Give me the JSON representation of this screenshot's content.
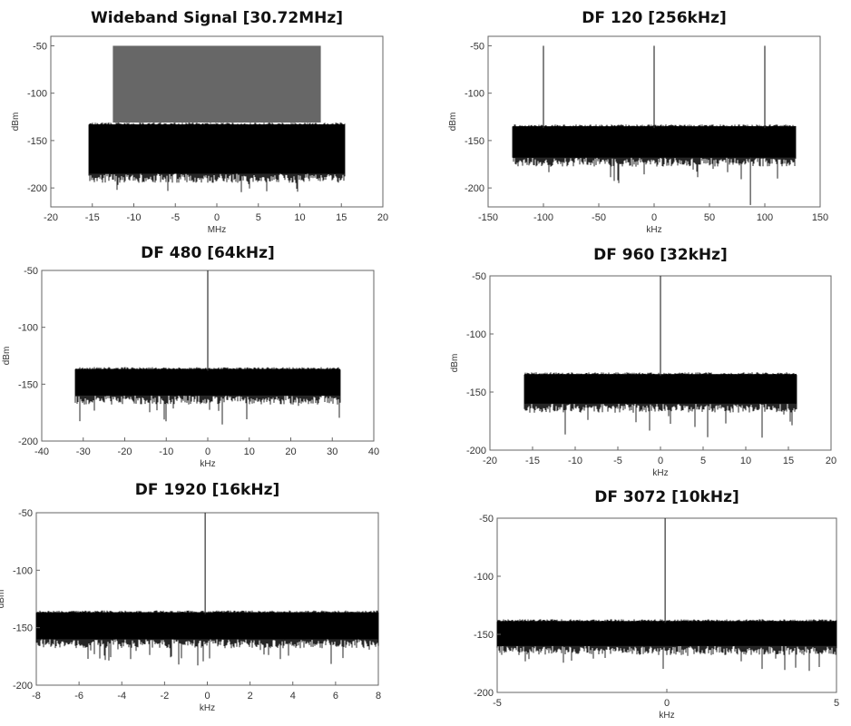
{
  "chart_data": [
    {
      "type": "line",
      "title": "Wideband Signal [30.72MHz]",
      "xlabel": "MHz",
      "ylabel": "dBm",
      "xlim": [
        -20,
        20
      ],
      "ylim": [
        -220,
        -40
      ],
      "xticks": [
        -20,
        -15,
        -10,
        -5,
        0,
        5,
        10,
        15,
        20
      ],
      "yticks": [
        -50,
        -100,
        -150,
        -200
      ],
      "noise_floor": {
        "x_range": [
          -15.36,
          15.36
        ],
        "top": -131,
        "bottom": -185,
        "deep_min": -210
      },
      "tone_band": {
        "x_range": [
          -12.5,
          12.5
        ],
        "peak": -50
      },
      "tones": [],
      "color": "#000000"
    },
    {
      "type": "line",
      "title": "DF 120 [256kHz]",
      "xlabel": "kHz",
      "ylabel": "dBm",
      "xlim": [
        -150,
        150
      ],
      "ylim": [
        -220,
        -40
      ],
      "xticks": [
        -150,
        -100,
        -50,
        0,
        50,
        100,
        150
      ],
      "yticks": [
        -50,
        -100,
        -150,
        -200
      ],
      "noise_floor": {
        "x_range": [
          -128,
          128
        ],
        "top": -133,
        "bottom": -168,
        "deep_min": -195
      },
      "tones": [
        {
          "x": -100,
          "peak": -50
        },
        {
          "x": 0,
          "peak": -50
        },
        {
          "x": 100,
          "peak": -50
        }
      ],
      "dips": [
        {
          "x": 87,
          "min": -218
        }
      ],
      "color": "#000000"
    },
    {
      "type": "line",
      "title": "DF 480 [64kHz]",
      "xlabel": "kHz",
      "ylabel": "dBm",
      "xlim": [
        -40,
        40
      ],
      "ylim": [
        -200,
        -50
      ],
      "xticks": [
        -40,
        -30,
        -20,
        -10,
        0,
        10,
        20,
        30,
        40
      ],
      "yticks": [
        -50,
        -100,
        -150,
        -200
      ],
      "noise_floor": {
        "x_range": [
          -32,
          32
        ],
        "top": -135,
        "bottom": -160,
        "deep_min": -187
      },
      "tones": [
        {
          "x": 0,
          "peak": -50
        }
      ],
      "color": "#000000"
    },
    {
      "type": "line",
      "title": "DF 960 [32kHz]",
      "xlabel": "kHz",
      "ylabel": "dBm",
      "xlim": [
        -20,
        20
      ],
      "ylim": [
        -200,
        -50
      ],
      "xticks": [
        -20,
        -15,
        -10,
        -5,
        0,
        5,
        10,
        15,
        20
      ],
      "yticks": [
        -50,
        -100,
        -150,
        -200
      ],
      "noise_floor": {
        "x_range": [
          -16,
          16
        ],
        "top": -133,
        "bottom": -160,
        "deep_min": -190
      },
      "tones": [
        {
          "x": 0,
          "peak": -50
        }
      ],
      "color": "#000000"
    },
    {
      "type": "line",
      "title": "DF 1920 [16kHz]",
      "xlabel": "kHz",
      "ylabel": "dBm",
      "xlim": [
        -8,
        8
      ],
      "ylim": [
        -200,
        -50
      ],
      "xticks": [
        -8,
        -6,
        -4,
        -2,
        0,
        2,
        4,
        6,
        8
      ],
      "yticks": [
        -50,
        -100,
        -150,
        -200
      ],
      "noise_floor": {
        "x_range": [
          -8,
          8
        ],
        "top": -135,
        "bottom": -160,
        "deep_min": -183
      },
      "tones": [
        {
          "x": -0.1,
          "peak": -50
        }
      ],
      "color": "#000000"
    },
    {
      "type": "line",
      "title": "DF 3072 [10kHz]",
      "xlabel": "kHz",
      "ylabel": "",
      "xlim": [
        -5,
        5
      ],
      "ylim": [
        -200,
        -50
      ],
      "xticks": [
        -5,
        0,
        5
      ],
      "yticks": [
        -50,
        -100,
        -150,
        -200
      ],
      "noise_floor": {
        "x_range": [
          -5,
          5
        ],
        "top": -137,
        "bottom": -160,
        "deep_min": -182
      },
      "tones": [
        {
          "x": -0.05,
          "peak": -50
        }
      ],
      "color": "#000000"
    }
  ]
}
